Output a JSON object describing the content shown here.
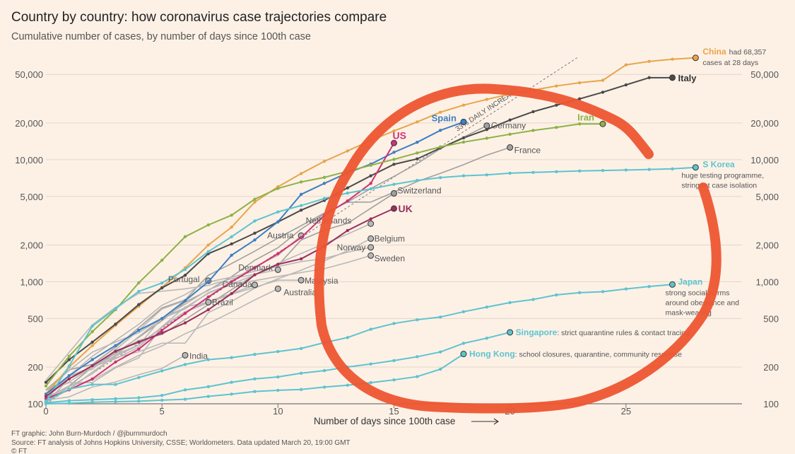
{
  "chart_data": {
    "type": "line",
    "title": "Country by country: how coronavirus case trajectories compare",
    "subtitle": "Cumulative number of cases, by number of days since 100th case",
    "xlabel": "Number of days since 100th case",
    "xlim": [
      0,
      30
    ],
    "ylim": [
      100,
      70000
    ],
    "yscale": "log",
    "x_ticks": [
      0,
      5,
      10,
      15,
      20,
      25
    ],
    "y_ticks": [
      100,
      200,
      500,
      1000,
      2000,
      5000,
      10000,
      20000,
      50000
    ],
    "y_tick_labels": [
      "100",
      "200",
      "500",
      "1,000",
      "2,000",
      "5,000",
      "10,000",
      "20,000",
      "50,000"
    ],
    "grid": true,
    "reference_line": {
      "label": "33% DAILY INCREASE",
      "daily_growth": 0.33
    },
    "footer": {
      "credit": "FT graphic: John Burn-Murdoch / @jburnmurdoch",
      "source": "Source: FT analysis of Johns Hopkins University, CSSE; Worldometers. Data updated March 20, 19:00 GMT",
      "copyright": "© FT"
    },
    "annotation": {
      "type": "hand-drawn circle",
      "color": "#ee5530"
    },
    "series": [
      {
        "name": "China",
        "label": "China",
        "note": [
          "had 68,357",
          "cases at 28 days"
        ],
        "color": "#e8a54b",
        "highlight": true,
        "x": [
          0,
          1,
          2,
          3,
          4,
          5,
          6,
          7,
          8,
          9,
          10,
          11,
          12,
          13,
          14,
          15,
          16,
          17,
          18,
          19,
          20,
          21,
          22,
          23,
          24,
          25,
          26,
          27,
          28
        ],
        "y": [
          120,
          200,
          300,
          440,
          630,
          900,
          1300,
          2000,
          2800,
          4500,
          6000,
          7700,
          9700,
          11800,
          14400,
          17200,
          20400,
          24500,
          28000,
          31200,
          34500,
          37200,
          40200,
          42700,
          44700,
          59900,
          63900,
          66600,
          68357
        ]
      },
      {
        "name": "Italy",
        "label": "Italy",
        "color": "#4a4a4a",
        "highlight": true,
        "x": [
          0,
          1,
          2,
          3,
          4,
          5,
          6,
          7,
          8,
          9,
          10,
          11,
          12,
          13,
          14,
          15,
          16,
          17,
          18,
          19,
          20,
          21,
          22,
          23,
          24,
          25,
          26,
          27
        ],
        "y": [
          150,
          230,
          320,
          450,
          650,
          890,
          1130,
          1700,
          2040,
          2500,
          3090,
          3860,
          4640,
          5880,
          7380,
          9170,
          10150,
          12460,
          15110,
          17660,
          21160,
          24750,
          27980,
          31510,
          35710,
          41040,
          47020,
          47021
        ]
      },
      {
        "name": "Spain",
        "label": "Spain",
        "color": "#3d7fc2",
        "highlight": true,
        "x": [
          0,
          1,
          2,
          3,
          4,
          5,
          6,
          7,
          8,
          9,
          10,
          11,
          12,
          13,
          14,
          15,
          16,
          17,
          18
        ],
        "y": [
          120,
          170,
          230,
          300,
          400,
          500,
          700,
          1000,
          1650,
          2200,
          3100,
          5200,
          6400,
          7800,
          9200,
          11500,
          13900,
          17400,
          20400
        ]
      },
      {
        "name": "US",
        "label": "US",
        "color": "#cc3377",
        "highlight": true,
        "x": [
          0,
          1,
          2,
          3,
          4,
          5,
          6,
          7,
          8,
          9,
          10,
          11,
          12,
          13,
          14,
          15
        ],
        "y": [
          110,
          130,
          160,
          220,
          280,
          400,
          550,
          750,
          1000,
          1300,
          1700,
          2300,
          3500,
          4600,
          6400,
          13700
        ]
      },
      {
        "name": "Germany",
        "label": "Germany",
        "color": "#a0a0a0",
        "x": [
          0,
          1,
          2,
          3,
          4,
          5,
          6,
          7,
          8,
          9,
          10,
          11,
          12,
          13,
          14,
          15,
          16,
          17,
          18,
          19
        ],
        "y": [
          130,
          160,
          200,
          260,
          350,
          480,
          680,
          850,
          1100,
          1500,
          1900,
          2700,
          3600,
          4500,
          5800,
          7300,
          9300,
          12300,
          15300,
          19000
        ]
      },
      {
        "name": "Iran",
        "label": "Iran",
        "color": "#8cb246",
        "highlight": true,
        "x": [
          0,
          1,
          2,
          3,
          4,
          5,
          6,
          7,
          8,
          9,
          10,
          11,
          12,
          13,
          14,
          15,
          16,
          17,
          18,
          19,
          20,
          21,
          22,
          23,
          24
        ],
        "y": [
          140,
          245,
          390,
          590,
          980,
          1500,
          2340,
          2920,
          3510,
          4750,
          5820,
          6570,
          7160,
          8040,
          9000,
          10070,
          11360,
          12730,
          13940,
          14990,
          16170,
          17360,
          18400,
          19640,
          19640
        ]
      },
      {
        "name": "France",
        "label": "France",
        "color": "#a0a0a0",
        "x": [
          0,
          1,
          2,
          3,
          4,
          5,
          6,
          7,
          8,
          9,
          10,
          11,
          12,
          13,
          14,
          15,
          16,
          17,
          18,
          19,
          20
        ],
        "y": [
          130,
          190,
          210,
          290,
          420,
          610,
          710,
          1130,
          1410,
          1780,
          2280,
          2880,
          3660,
          4480,
          4500,
          5420,
          6630,
          7730,
          9100,
          10900,
          12600
        ]
      },
      {
        "name": "S Korea",
        "label": "S Korea",
        "note": [
          "huge testing programme,",
          "stringent case isolation"
        ],
        "color": "#5ec3cf",
        "highlight": true,
        "x": [
          0,
          1,
          2,
          3,
          4,
          5,
          6,
          7,
          8,
          9,
          10,
          11,
          12,
          13,
          14,
          15,
          16,
          17,
          18,
          19,
          20,
          21,
          22,
          23,
          24,
          25,
          26,
          27,
          28
        ],
        "y": [
          104,
          204,
          433,
          602,
          833,
          977,
          1261,
          1766,
          2337,
          3150,
          3736,
          4212,
          4812,
          5328,
          5766,
          6284,
          6767,
          7134,
          7382,
          7513,
          7755,
          7869,
          7979,
          8086,
          8162,
          8236,
          8320,
          8413,
          8652
        ]
      },
      {
        "name": "Switzerland",
        "label": "Switzerland",
        "color": "#a0a0a0",
        "x": [
          0,
          1,
          2,
          3,
          4,
          5,
          6,
          7,
          8,
          9,
          10,
          11,
          12,
          13,
          14,
          15
        ],
        "y": [
          110,
          140,
          200,
          260,
          330,
          370,
          490,
          650,
          860,
          1140,
          1360,
          2200,
          2650,
          3010,
          4000,
          5300
        ]
      },
      {
        "name": "UK",
        "label": "UK",
        "color": "#9b2f5e",
        "highlight": true,
        "x": [
          0,
          1,
          2,
          3,
          4,
          5,
          6,
          7,
          8,
          9,
          10,
          11,
          12,
          13,
          14,
          15
        ],
        "y": [
          115,
          160,
          205,
          270,
          320,
          380,
          460,
          590,
          800,
          1140,
          1390,
          1540,
          1950,
          2630,
          3270,
          3980
        ]
      },
      {
        "name": "Netherlands",
        "label": "Netherlands",
        "color": "#b8b8b8",
        "x": [
          0,
          1,
          2,
          3,
          4,
          5,
          6,
          7,
          8,
          9,
          10,
          11,
          12,
          13,
          14
        ],
        "y": [
          128,
          188,
          265,
          321,
          382,
          503,
          614,
          804,
          959,
          1135,
          1413,
          1705,
          2051,
          2460,
          2994
        ]
      },
      {
        "name": "Austria",
        "label": "Austria",
        "color": "#b8b8b8",
        "x": [
          0,
          1,
          2,
          3,
          4,
          5,
          6,
          7,
          8,
          9,
          10,
          11
        ],
        "y": [
          104,
          131,
          182,
          246,
          302,
          504,
          655,
          860,
          1018,
          1332,
          1646,
          2388
        ]
      },
      {
        "name": "Belgium",
        "label": "Belgium",
        "color": "#b8b8b8",
        "x": [
          0,
          1,
          2,
          3,
          4,
          5,
          6,
          7,
          8,
          9,
          10,
          11,
          12,
          13,
          14
        ],
        "y": [
          109,
          169,
          200,
          239,
          267,
          314,
          314,
          559,
          689,
          886,
          1058,
          1243,
          1486,
          1795,
          2257
        ]
      },
      {
        "name": "Norway",
        "label": "Norway",
        "color": "#b8b8b8",
        "x": [
          0,
          1,
          2,
          3,
          4,
          5,
          6,
          7,
          8,
          9,
          10,
          11,
          12,
          13,
          14
        ],
        "y": [
          113,
          169,
          192,
          277,
          400,
          598,
          702,
          996,
          1090,
          1221,
          1333,
          1463,
          1550,
          1746,
          1914
        ]
      },
      {
        "name": "Sweden",
        "label": "Sweden",
        "color": "#b8b8b8",
        "x": [
          0,
          1,
          2,
          3,
          4,
          5,
          6,
          7,
          8,
          9,
          10,
          11,
          12,
          13,
          14
        ],
        "y": [
          101,
          161,
          203,
          248,
          355,
          500,
          599,
          814,
          961,
          1022,
          1103,
          1190,
          1279,
          1439,
          1639
        ]
      },
      {
        "name": "Denmark",
        "label": "Denmark",
        "color": "#b8b8b8",
        "x": [
          0,
          1,
          2,
          3,
          4,
          5,
          6,
          7,
          8,
          9,
          10
        ],
        "y": [
          156,
          264,
          444,
          617,
          804,
          836,
          875,
          933,
          1059,
          1151,
          1255
        ]
      },
      {
        "name": "Malaysia",
        "label": "Malaysia",
        "color": "#b8b8b8",
        "x": [
          0,
          1,
          2,
          3,
          4,
          5,
          6,
          7,
          8,
          9,
          10,
          11
        ],
        "y": [
          129,
          149,
          149,
          197,
          238,
          428,
          566,
          673,
          790,
          900,
          1030,
          1030
        ]
      },
      {
        "name": "Portugal",
        "label": "Portugal",
        "color": "#b8b8b8",
        "x": [
          0,
          1,
          2,
          3,
          4,
          5,
          6,
          7
        ],
        "y": [
          112,
          169,
          245,
          331,
          448,
          642,
          785,
          1020
        ]
      },
      {
        "name": "Canada",
        "label": "Canada",
        "color": "#b8b8b8",
        "x": [
          0,
          1,
          2,
          3,
          4,
          5,
          6,
          7,
          8,
          9
        ],
        "y": [
          103,
          138,
          176,
          252,
          304,
          424,
          569,
          690,
          800,
          943
        ]
      },
      {
        "name": "Australia",
        "label": "Australia",
        "color": "#b8b8b8",
        "x": [
          0,
          1,
          2,
          3,
          4,
          5,
          6,
          7,
          8,
          9,
          10
        ],
        "y": [
          112,
          140,
          156,
          200,
          249,
          298,
          375,
          454,
          565,
          709,
          876
        ]
      },
      {
        "name": "Brazil",
        "label": "Brazil",
        "color": "#b8b8b8",
        "x": [
          0,
          1,
          2,
          3,
          4,
          5,
          6,
          7
        ],
        "y": [
          121,
          151,
          200,
          234,
          291,
          428,
          621,
          680
        ]
      },
      {
        "name": "India",
        "label": "India",
        "color": "#b8b8b8",
        "x": [
          0,
          1,
          2,
          3,
          4,
          5,
          6
        ],
        "y": [
          107,
          114,
          137,
          151,
          173,
          195,
          250
        ]
      },
      {
        "name": "Japan",
        "label": "Japan",
        "note": [
          "strong social norms",
          "around obedience and",
          "mask-wearing"
        ],
        "color": "#5ec3cf",
        "highlight": true,
        "x": [
          0,
          1,
          2,
          3,
          4,
          5,
          6,
          7,
          8,
          9,
          10,
          11,
          12,
          13,
          14,
          15,
          16,
          17,
          18,
          19,
          20,
          21,
          22,
          23,
          24,
          25,
          26,
          27
        ],
        "y": [
          105,
          132,
          144,
          144,
          164,
          186,
          210,
          230,
          239,
          254,
          268,
          284,
          317,
          349,
          408,
          455,
          488,
          514,
          568,
          620,
          675,
          716,
          780,
          814,
          829,
          873,
          914,
          950
        ]
      },
      {
        "name": "Singapore",
        "label": "Singapore",
        "note": [
          "strict quarantine rules & contact tracing"
        ],
        "color": "#5ec3cf",
        "highlight": true,
        "x": [
          0,
          1,
          2,
          3,
          4,
          5,
          6,
          7,
          8,
          9,
          10,
          11,
          12,
          13,
          14,
          15,
          16,
          17,
          18,
          19,
          20
        ],
        "y": [
          102,
          106,
          108,
          110,
          112,
          117,
          130,
          138,
          150,
          160,
          166,
          178,
          187,
          200,
          212,
          226,
          243,
          266,
          313,
          345,
          385
        ]
      },
      {
        "name": "Hong Kong",
        "label": "Hong Kong",
        "note": [
          "school closures, quarantine, community response"
        ],
        "color": "#5ec3cf",
        "highlight": true,
        "x": [
          0,
          1,
          2,
          3,
          4,
          5,
          6,
          7,
          8,
          9,
          10,
          11,
          12,
          13,
          14,
          15,
          16,
          17,
          18
        ],
        "y": [
          100,
          101,
          103,
          104,
          105,
          107,
          109,
          115,
          120,
          126,
          129,
          131,
          137,
          142,
          149,
          157,
          167,
          192,
          256
        ]
      }
    ]
  }
}
